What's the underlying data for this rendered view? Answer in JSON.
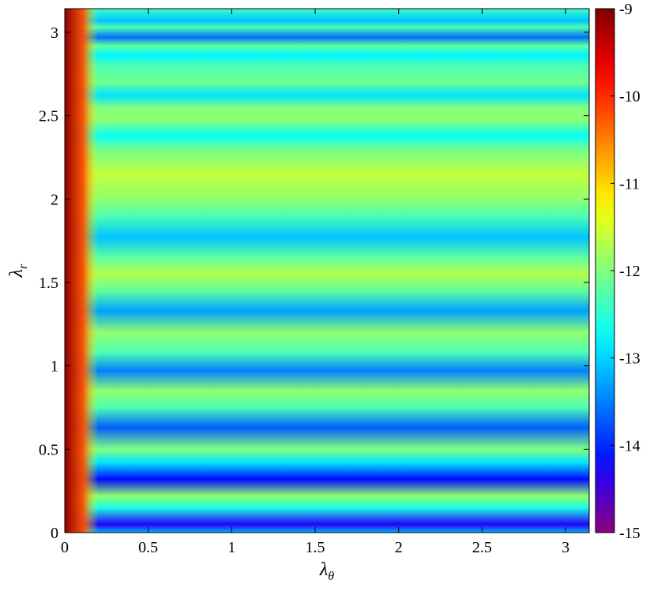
{
  "chart_data": {
    "type": "heatmap",
    "title": "",
    "xlabel": "λ",
    "xlabel_sub": "θ",
    "ylabel": "λ",
    "ylabel_sub": "r",
    "xlim": [
      0,
      3.1416
    ],
    "ylim": [
      0,
      3.1416
    ],
    "x_ticks": [
      0,
      0.5,
      1,
      1.5,
      2,
      2.5,
      3
    ],
    "x_tick_labels": [
      "0",
      "0.5",
      "1",
      "1.5",
      "2",
      "2.5",
      "3"
    ],
    "y_ticks": [
      0,
      0.5,
      1,
      1.5,
      2,
      2.5,
      3
    ],
    "y_tick_labels": [
      "0",
      "0.5",
      "1",
      "1.5",
      "2",
      "2.5",
      "3"
    ],
    "grid": false,
    "colorbar": {
      "position": "right",
      "colormap": "jet",
      "range": [
        -15,
        -9
      ],
      "ticks": [
        -15,
        -14,
        -13,
        -12,
        -11,
        -10,
        -9
      ],
      "tick_labels": [
        "-15",
        "-14",
        "-13",
        "-12",
        "-11",
        "-10",
        "-9"
      ]
    },
    "field": {
      "description_values": "log10 magnitude, approximate, varies mainly with λ_r",
      "left_strip": {
        "lambda_theta_max": 0.2,
        "value_low": -10.2,
        "value_high": -9.1
      },
      "rows": [
        {
          "lambda_r": 0.0,
          "value": -13.2
        },
        {
          "lambda_r": 0.05,
          "value": -14.3
        },
        {
          "lambda_r": 0.15,
          "value": -12.6
        },
        {
          "lambda_r": 0.22,
          "value": -11.9
        },
        {
          "lambda_r": 0.32,
          "value": -14.2
        },
        {
          "lambda_r": 0.42,
          "value": -12.9
        },
        {
          "lambda_r": 0.5,
          "value": -12.0
        },
        {
          "lambda_r": 0.63,
          "value": -13.7
        },
        {
          "lambda_r": 0.75,
          "value": -12.3
        },
        {
          "lambda_r": 0.85,
          "value": -11.9
        },
        {
          "lambda_r": 0.97,
          "value": -13.5
        },
        {
          "lambda_r": 1.08,
          "value": -12.3
        },
        {
          "lambda_r": 1.2,
          "value": -11.9
        },
        {
          "lambda_r": 1.33,
          "value": -13.3
        },
        {
          "lambda_r": 1.45,
          "value": -12.2
        },
        {
          "lambda_r": 1.55,
          "value": -11.7
        },
        {
          "lambda_r": 1.65,
          "value": -12.2
        },
        {
          "lambda_r": 1.77,
          "value": -13.1
        },
        {
          "lambda_r": 1.9,
          "value": -12.3
        },
        {
          "lambda_r": 2.0,
          "value": -11.9
        },
        {
          "lambda_r": 2.15,
          "value": -11.6
        },
        {
          "lambda_r": 2.3,
          "value": -12.1
        },
        {
          "lambda_r": 2.38,
          "value": -12.7
        },
        {
          "lambda_r": 2.48,
          "value": -11.9
        },
        {
          "lambda_r": 2.55,
          "value": -12.0
        },
        {
          "lambda_r": 2.62,
          "value": -12.9
        },
        {
          "lambda_r": 2.7,
          "value": -12.1
        },
        {
          "lambda_r": 2.8,
          "value": -12.3
        },
        {
          "lambda_r": 2.86,
          "value": -12.8
        },
        {
          "lambda_r": 2.92,
          "value": -12.2
        },
        {
          "lambda_r": 2.97,
          "value": -13.6
        },
        {
          "lambda_r": 3.03,
          "value": -12.3
        },
        {
          "lambda_r": 3.07,
          "value": -13.1
        },
        {
          "lambda_r": 3.1416,
          "value": -12.4
        }
      ]
    }
  }
}
